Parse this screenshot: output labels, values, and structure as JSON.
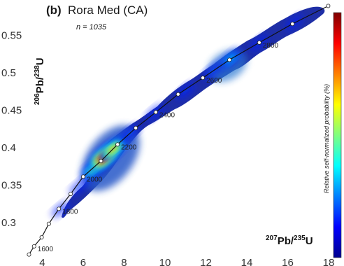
{
  "panel": {
    "letter": "(b)",
    "name": "Rora Med (CA)",
    "n_label": "n = 1035"
  },
  "chart_data": {
    "type": "density concordia plot",
    "x_axis": {
      "label_sup": "207",
      "label_main": "Pb/",
      "label_sup2": "235",
      "label_end": "U",
      "range": [
        3.3,
        18
      ],
      "ticks": [
        4,
        6,
        8,
        10,
        12,
        14,
        16,
        18
      ]
    },
    "y_axis": {
      "label_sup": "206",
      "label_main": "Pb/",
      "label_sup2": "238",
      "label_end": "U",
      "range": [
        0.259,
        0.589
      ],
      "ticks": [
        0.3,
        0.35,
        0.4,
        0.45,
        0.5,
        0.55
      ],
      "tick_labels": [
        "0.3",
        "0.35",
        "0.4",
        "0.45",
        "0.5",
        "0.55"
      ]
    },
    "colorbar": {
      "title": "Relative self-normalized probability (%)",
      "colormap": "jet"
    },
    "concordia": [
      {
        "x": 3.35,
        "y": 0.2575
      },
      {
        "x": 3.6,
        "y": 0.2685
      },
      {
        "x": 3.97,
        "y": 0.2805
      },
      {
        "x": 4.32,
        "y": 0.2985
      },
      {
        "x": 4.81,
        "y": 0.3185
      },
      {
        "x": 5.39,
        "y": 0.3385
      },
      {
        "x": 6.0,
        "y": 0.3615
      },
      {
        "x": 6.87,
        "y": 0.3825
      },
      {
        "x": 7.68,
        "y": 0.4045
      },
      {
        "x": 8.57,
        "y": 0.4265
      },
      {
        "x": 9.55,
        "y": 0.4475
      },
      {
        "x": 10.64,
        "y": 0.4715
      },
      {
        "x": 11.85,
        "y": 0.4935
      },
      {
        "x": 13.15,
        "y": 0.5175
      },
      {
        "x": 14.61,
        "y": 0.5405
      },
      {
        "x": 16.23,
        "y": 0.5655
      },
      {
        "x": 17.98,
        "y": 0.5895
      }
    ],
    "age_markers": [
      {
        "label": "1600",
        "x": 3.6,
        "y": 0.2685
      },
      {
        "label": "1800",
        "x": 4.81,
        "y": 0.3185
      },
      {
        "label": "2000",
        "x": 6.0,
        "y": 0.3615
      },
      {
        "label": "2200",
        "x": 7.68,
        "y": 0.4045
      },
      {
        "label": "2400",
        "x": 9.55,
        "y": 0.4475
      },
      {
        "label": "2600",
        "x": 11.85,
        "y": 0.4935
      },
      {
        "label": "2800",
        "x": 14.61,
        "y": 0.5405
      }
    ],
    "density_blobs": [
      {
        "x": 4.9,
        "y": 0.318,
        "level": 0.05
      },
      {
        "x": 5.8,
        "y": 0.348,
        "level": 0.12
      },
      {
        "x": 6.5,
        "y": 0.372,
        "level": 0.5
      },
      {
        "x": 7.05,
        "y": 0.388,
        "level": 1.0
      },
      {
        "x": 7.45,
        "y": 0.398,
        "level": 0.7
      },
      {
        "x": 8.3,
        "y": 0.42,
        "level": 0.15
      },
      {
        "x": 9.5,
        "y": 0.447,
        "level": 0.08
      },
      {
        "x": 11.0,
        "y": 0.476,
        "level": 0.1
      },
      {
        "x": 12.3,
        "y": 0.502,
        "level": 0.12
      },
      {
        "x": 13.2,
        "y": 0.519,
        "level": 0.3
      },
      {
        "x": 14.6,
        "y": 0.54,
        "level": 0.1
      },
      {
        "x": 16.3,
        "y": 0.567,
        "level": 0.05
      }
    ],
    "grid": false
  }
}
